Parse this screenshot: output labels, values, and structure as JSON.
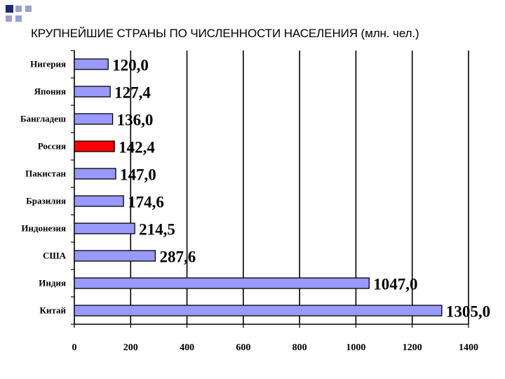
{
  "slide": {
    "title": "КРУПНЕЙШИЕ СТРАНЫ ПО ЧИСЛЕННОСТИ НАСЕЛЕНИЯ (млн. чел.)"
  },
  "colors": {
    "bar": "#9999ff",
    "highlight": "#ff0000",
    "deco_dark": "#1f2b6e",
    "deco_light": "#9aa0c8"
  },
  "chart_data": {
    "type": "bar",
    "orientation": "horizontal",
    "categories": [
      "Нигерия",
      "Япония",
      "Бангладеш",
      "Россия",
      "Пакистан",
      "Бразилия",
      "Индонезия",
      "США",
      "Индия",
      "Китай"
    ],
    "values": [
      120.0,
      127.4,
      136.0,
      142.4,
      147.0,
      174.6,
      214.5,
      287.6,
      1047.0,
      1305.0
    ],
    "value_labels": [
      "120,0",
      "127,4",
      "136,0",
      "142,4",
      "147,0",
      "174,6",
      "214,5",
      "287,6",
      "1047,0",
      "1305,0"
    ],
    "highlight_category": "Россия",
    "xlim": [
      0,
      1400
    ],
    "xticks": [
      0,
      200,
      400,
      600,
      800,
      1000,
      1200,
      1400
    ],
    "grid": true
  }
}
